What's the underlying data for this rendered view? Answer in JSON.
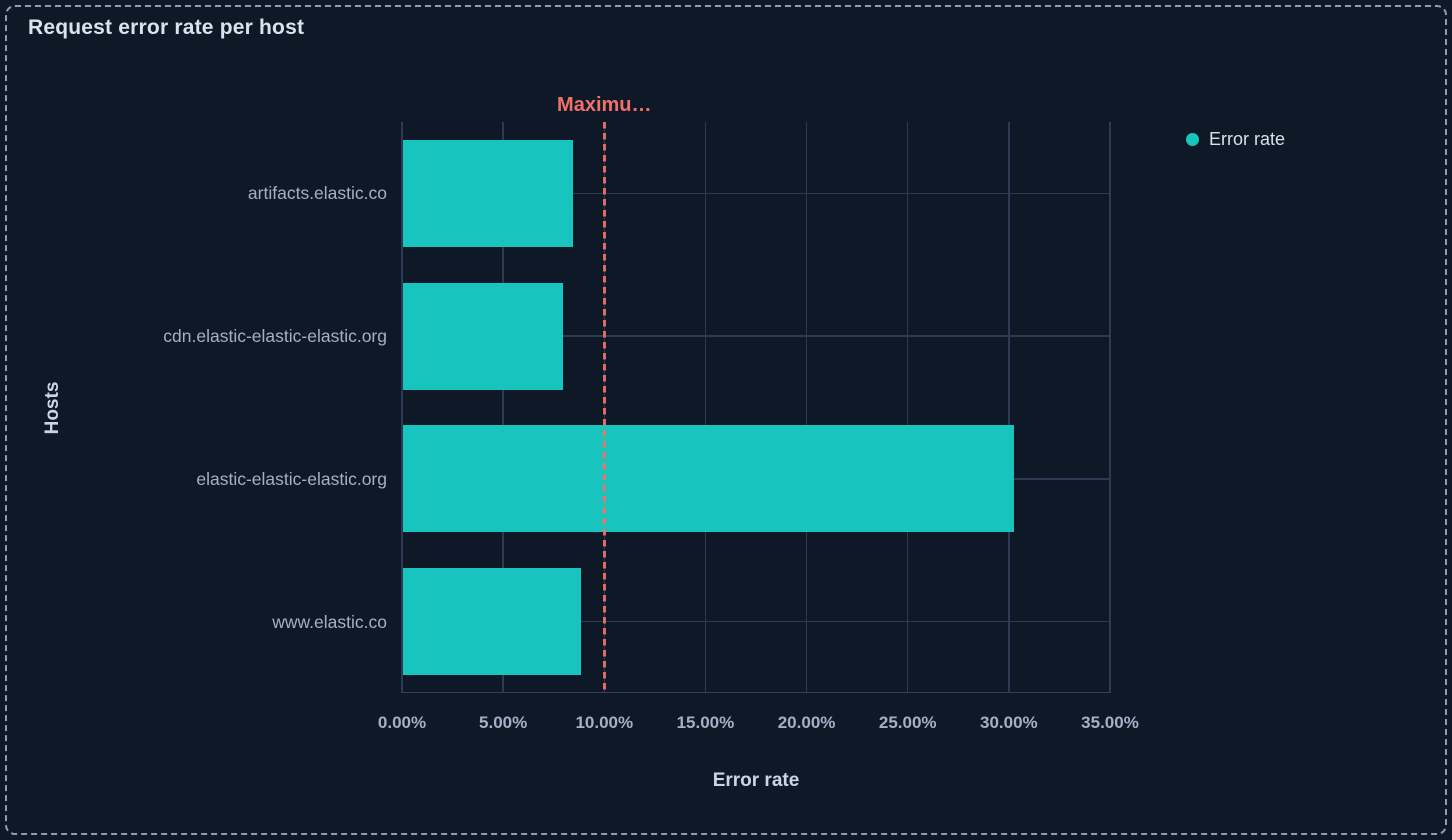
{
  "panel": {
    "title": "Request error rate per host"
  },
  "colors": {
    "background": "#0F1826",
    "panel_border": "#8C9DB8",
    "grid": "#2B3B54",
    "axis_line": "#30405A",
    "bar": "#17C5BE",
    "threshold": "#F0716A",
    "title_text": "#D9E3F0",
    "label_text": "#A2B1C6",
    "axis_title_text": "#CBD6E4",
    "legend_text": "#D6E0EC"
  },
  "chart_data": {
    "type": "bar",
    "orientation": "horizontal",
    "title": "Request error rate per host",
    "categories": [
      "artifacts.elastic.co",
      "cdn.elastic-elastic-elastic.org",
      "elastic-elastic-elastic.org",
      "www.elastic.co"
    ],
    "series": [
      {
        "name": "Error rate",
        "values": [
          8.4,
          7.9,
          30.2,
          8.8
        ]
      }
    ],
    "value_unit": "%",
    "xlabel": "Error rate",
    "ylabel": "Hosts",
    "xlim": [
      0,
      35
    ],
    "x_tick_values": [
      0,
      5,
      10,
      15,
      20,
      25,
      30,
      35
    ],
    "x_tick_labels": [
      "0.00%",
      "5.00%",
      "10.00%",
      "15.00%",
      "20.00%",
      "25.00%",
      "30.00%",
      "35.00%"
    ],
    "grid": true,
    "threshold": {
      "label": "Maximu…",
      "value": 10
    },
    "legend": {
      "position": "top-right",
      "items": [
        {
          "label": "Error rate",
          "color": "#17C5BE"
        }
      ]
    }
  }
}
